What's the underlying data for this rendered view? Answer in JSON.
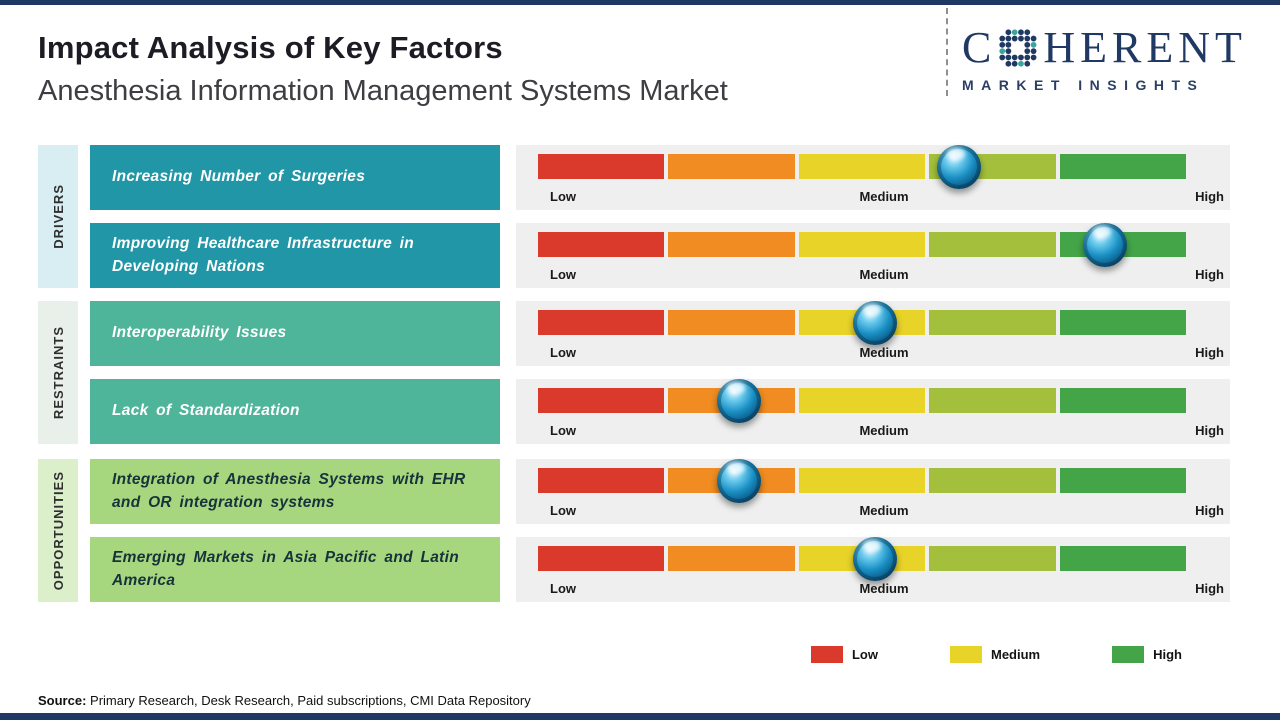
{
  "header": {
    "title": "Impact Analysis of Key Factors",
    "subtitle": "Anesthesia Information Management Systems Market"
  },
  "logo": {
    "brand_prefix": "C",
    "brand_suffix": "HERENT",
    "tagline": "MARKET INSIGHTS",
    "color": "#1f3864"
  },
  "scale": {
    "labels": {
      "low": "Low",
      "medium": "Medium",
      "high": "High"
    },
    "segment_colors": [
      "#d93a2b",
      "#f08c21",
      "#e8d329",
      "#a3bf3b",
      "#43a548"
    ],
    "track_background": "#efefef"
  },
  "groups": [
    {
      "label": "DRIVERS",
      "strip_color": "#d8eef3",
      "box_color": "#2196a6",
      "text_color": "#ffffff",
      "factors": [
        {
          "text": "Increasing Number of Surgeries",
          "marker_pos": 0.65
        },
        {
          "text": "Improving Healthcare Infrastructure in Developing Nations",
          "marker_pos": 0.875
        }
      ]
    },
    {
      "label": "RESTRAINTS",
      "strip_color": "#e9efe9",
      "box_color": "#4fb59a",
      "text_color": "#ffffff",
      "factors": [
        {
          "text": "Interoperability Issues",
          "marker_pos": 0.52
        },
        {
          "text": "Lack of Standardization",
          "marker_pos": 0.31
        }
      ]
    },
    {
      "label": "OPPORTUNITIES",
      "strip_color": "#dcefcb",
      "box_color": "#a6d77f",
      "text_color": "#16333b",
      "factors": [
        {
          "text": "Integration of Anesthesia Systems with EHR and OR integration systems",
          "marker_pos": 0.31
        },
        {
          "text": "Emerging Markets in Asia Pacific and Latin America",
          "marker_pos": 0.52
        }
      ]
    }
  ],
  "legend": {
    "items": [
      {
        "label": "Low",
        "color": "#d93a2b"
      },
      {
        "label": "Medium",
        "color": "#e8d329"
      },
      {
        "label": "High",
        "color": "#43a548"
      }
    ]
  },
  "source": {
    "label": "Source:",
    "text": " Primary Research, Desk Research, Paid subscriptions, CMI Data Repository"
  },
  "chart_data": {
    "type": "scatter",
    "title": "Impact Analysis of Key Factors",
    "subtitle": "Anesthesia Information Management Systems Market",
    "x_scale": [
      "Low",
      "Medium",
      "High"
    ],
    "x_range": [
      0,
      1
    ],
    "legend_position": "bottom",
    "series": [
      {
        "category": "Drivers",
        "factor": "Increasing Number of Surgeries",
        "impact_position": 0.65,
        "impact_level": "Medium-High"
      },
      {
        "category": "Drivers",
        "factor": "Improving Healthcare Infrastructure in Developing Nations",
        "impact_position": 0.875,
        "impact_level": "High"
      },
      {
        "category": "Restraints",
        "factor": "Interoperability Issues",
        "impact_position": 0.52,
        "impact_level": "Medium"
      },
      {
        "category": "Restraints",
        "factor": "Lack of Standardization",
        "impact_position": 0.31,
        "impact_level": "Low-Medium"
      },
      {
        "category": "Opportunities",
        "factor": "Integration of Anesthesia Systems with EHR and OR integration systems",
        "impact_position": 0.31,
        "impact_level": "Low-Medium"
      },
      {
        "category": "Opportunities",
        "factor": "Emerging Markets in Asia Pacific and Latin America",
        "impact_position": 0.52,
        "impact_level": "Medium"
      }
    ]
  }
}
